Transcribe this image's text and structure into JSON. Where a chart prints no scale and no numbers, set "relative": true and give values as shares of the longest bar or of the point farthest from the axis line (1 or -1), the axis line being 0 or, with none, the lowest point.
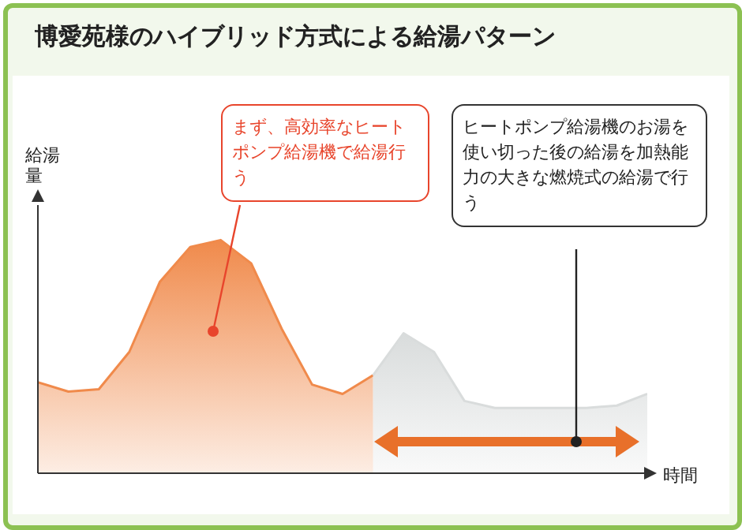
{
  "chart_data": {
    "type": "area",
    "title": "博愛苑様のハイブリッド方式による給湯パターン",
    "xlabel": "時間",
    "ylabel": "給湯量",
    "relative": true,
    "categories": [
      null,
      null,
      null,
      null,
      null,
      null,
      null,
      null,
      null,
      null,
      null,
      null,
      null,
      null,
      null,
      null,
      null,
      null,
      null,
      null,
      null
    ],
    "series": [
      {
        "color": "#f08a4b",
        "values": [
          0.39,
          0.35,
          0.36,
          0.52,
          0.82,
          0.97,
          1.0,
          0.9,
          0.62,
          0.38,
          0.34,
          0.42,
          null,
          null,
          null,
          null,
          null,
          null,
          null,
          null,
          null
        ]
      },
      {
        "color": "#d9dcdc",
        "values": [
          null,
          null,
          null,
          null,
          null,
          null,
          null,
          null,
          null,
          null,
          null,
          0.42,
          0.6,
          0.52,
          0.31,
          0.28,
          0.28,
          0.28,
          0.28,
          0.29,
          0.34
        ]
      }
    ],
    "annotations": [
      "まず、高効率なヒートポンプ給湯機で給湯行う",
      "ヒートポンプ給湯機のお湯を使い切った後の給湯を加熱能力の大きな燃焼式の給湯で行う"
    ]
  }
}
